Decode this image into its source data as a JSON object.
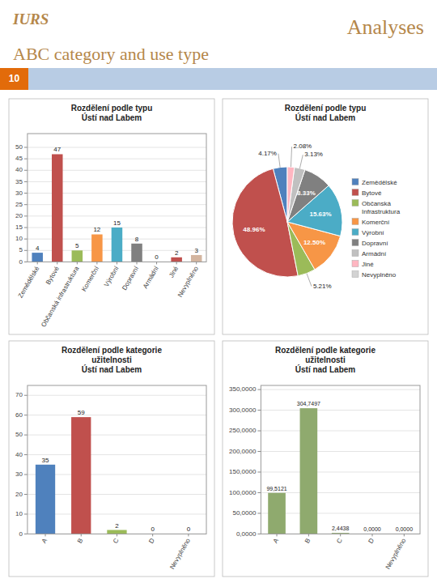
{
  "title": "ABC category and use type",
  "annotations": [
    "IURS",
    "Analyses",
    "10"
  ],
  "chart_data": [
    {
      "type": "bar",
      "title": "Rozdělení podle typu\nÚstí nad Labem",
      "categories": [
        "Zemědělské",
        "Bytové",
        "Občanská infrastruktura",
        "Komerční",
        "Výrobní",
        "Dopravní",
        "Armádní",
        "Jiné",
        "Nevyplněno"
      ],
      "values": [
        4,
        47,
        5,
        12,
        15,
        8,
        0,
        2,
        3
      ],
      "colors": [
        "#4f81bd",
        "#c0504d",
        "#9bbb59",
        "#f79646",
        "#4bacc6",
        "#808080",
        "#c0c0c0",
        "#c0504d",
        "#d3b5a0"
      ],
      "ylim": [
        0,
        56
      ],
      "yticks": [
        0,
        5,
        10,
        15,
        20,
        25,
        30,
        35,
        40,
        45,
        50
      ],
      "grid": true,
      "data_labels": true
    },
    {
      "type": "pie",
      "title": "Rozdělení podle typu\nÚstí nad Labem",
      "categories": [
        "Zemědělské",
        "Bytové",
        "Občanská\nInfrastruktura",
        "Komerční",
        "Výrobní",
        "Dopravní",
        "Armádní",
        "Jiné",
        "Nevyplněno"
      ],
      "values": [
        4.17,
        48.96,
        5.21,
        12.5,
        15.63,
        8.33,
        3.13,
        2.08,
        0
      ],
      "value_labels": [
        "4.17%",
        "48.96%",
        "5.21%",
        "12.50%",
        "15.63%",
        "8.33%",
        "3.13%",
        "2.08%",
        null
      ],
      "colors": [
        "#4f81bd",
        "#c0504d",
        "#9bbb59",
        "#f79646",
        "#4bacc6",
        "#808080",
        "#c0c0c0",
        "#ffb6c1",
        "#d3d3d3"
      ],
      "legend": "right",
      "data_labels": true
    },
    {
      "type": "bar",
      "title": "Rozdělení podle kategorie\nužitelnosti\nÚstí nad Labem",
      "categories": [
        "A",
        "B",
        "C",
        "D",
        "Nevyplněno"
      ],
      "values": [
        35,
        59,
        2,
        0,
        0
      ],
      "colors": [
        "#4f81bd",
        "#c0504d",
        "#9bbb59",
        "#f79646",
        "#d3b5a0"
      ],
      "ylim": [
        0,
        75
      ],
      "yticks": [
        0,
        10,
        20,
        30,
        40,
        50,
        60,
        70
      ],
      "grid": true,
      "data_labels": true
    },
    {
      "type": "bar",
      "title": "Rozdělení podle kategorie\nužitelnosti\nÚstí nad Labem",
      "categories": [
        "A",
        "B",
        "C",
        "D",
        "Nevyplněno"
      ],
      "values": [
        99.5121,
        304.7497,
        2.4438,
        0.0,
        0.0
      ],
      "value_labels": [
        "99,5121",
        "304,7497",
        "2,4438",
        "0,0000",
        "0,0000"
      ],
      "color": "#8faa6e",
      "ylim": [
        0,
        360
      ],
      "yticks": [
        {
          "value": 0,
          "label": "0,0000"
        },
        {
          "value": 50,
          "label": "50,0000"
        },
        {
          "value": 100,
          "label": "100,0000"
        },
        {
          "value": 150,
          "label": "150,0000"
        },
        {
          "value": 200,
          "label": "200,0000"
        },
        {
          "value": 250,
          "label": "250,0000"
        },
        {
          "value": 300,
          "label": "300,0000"
        },
        {
          "value": 350,
          "label": "350,0000"
        }
      ],
      "grid": true,
      "data_labels": true
    }
  ]
}
